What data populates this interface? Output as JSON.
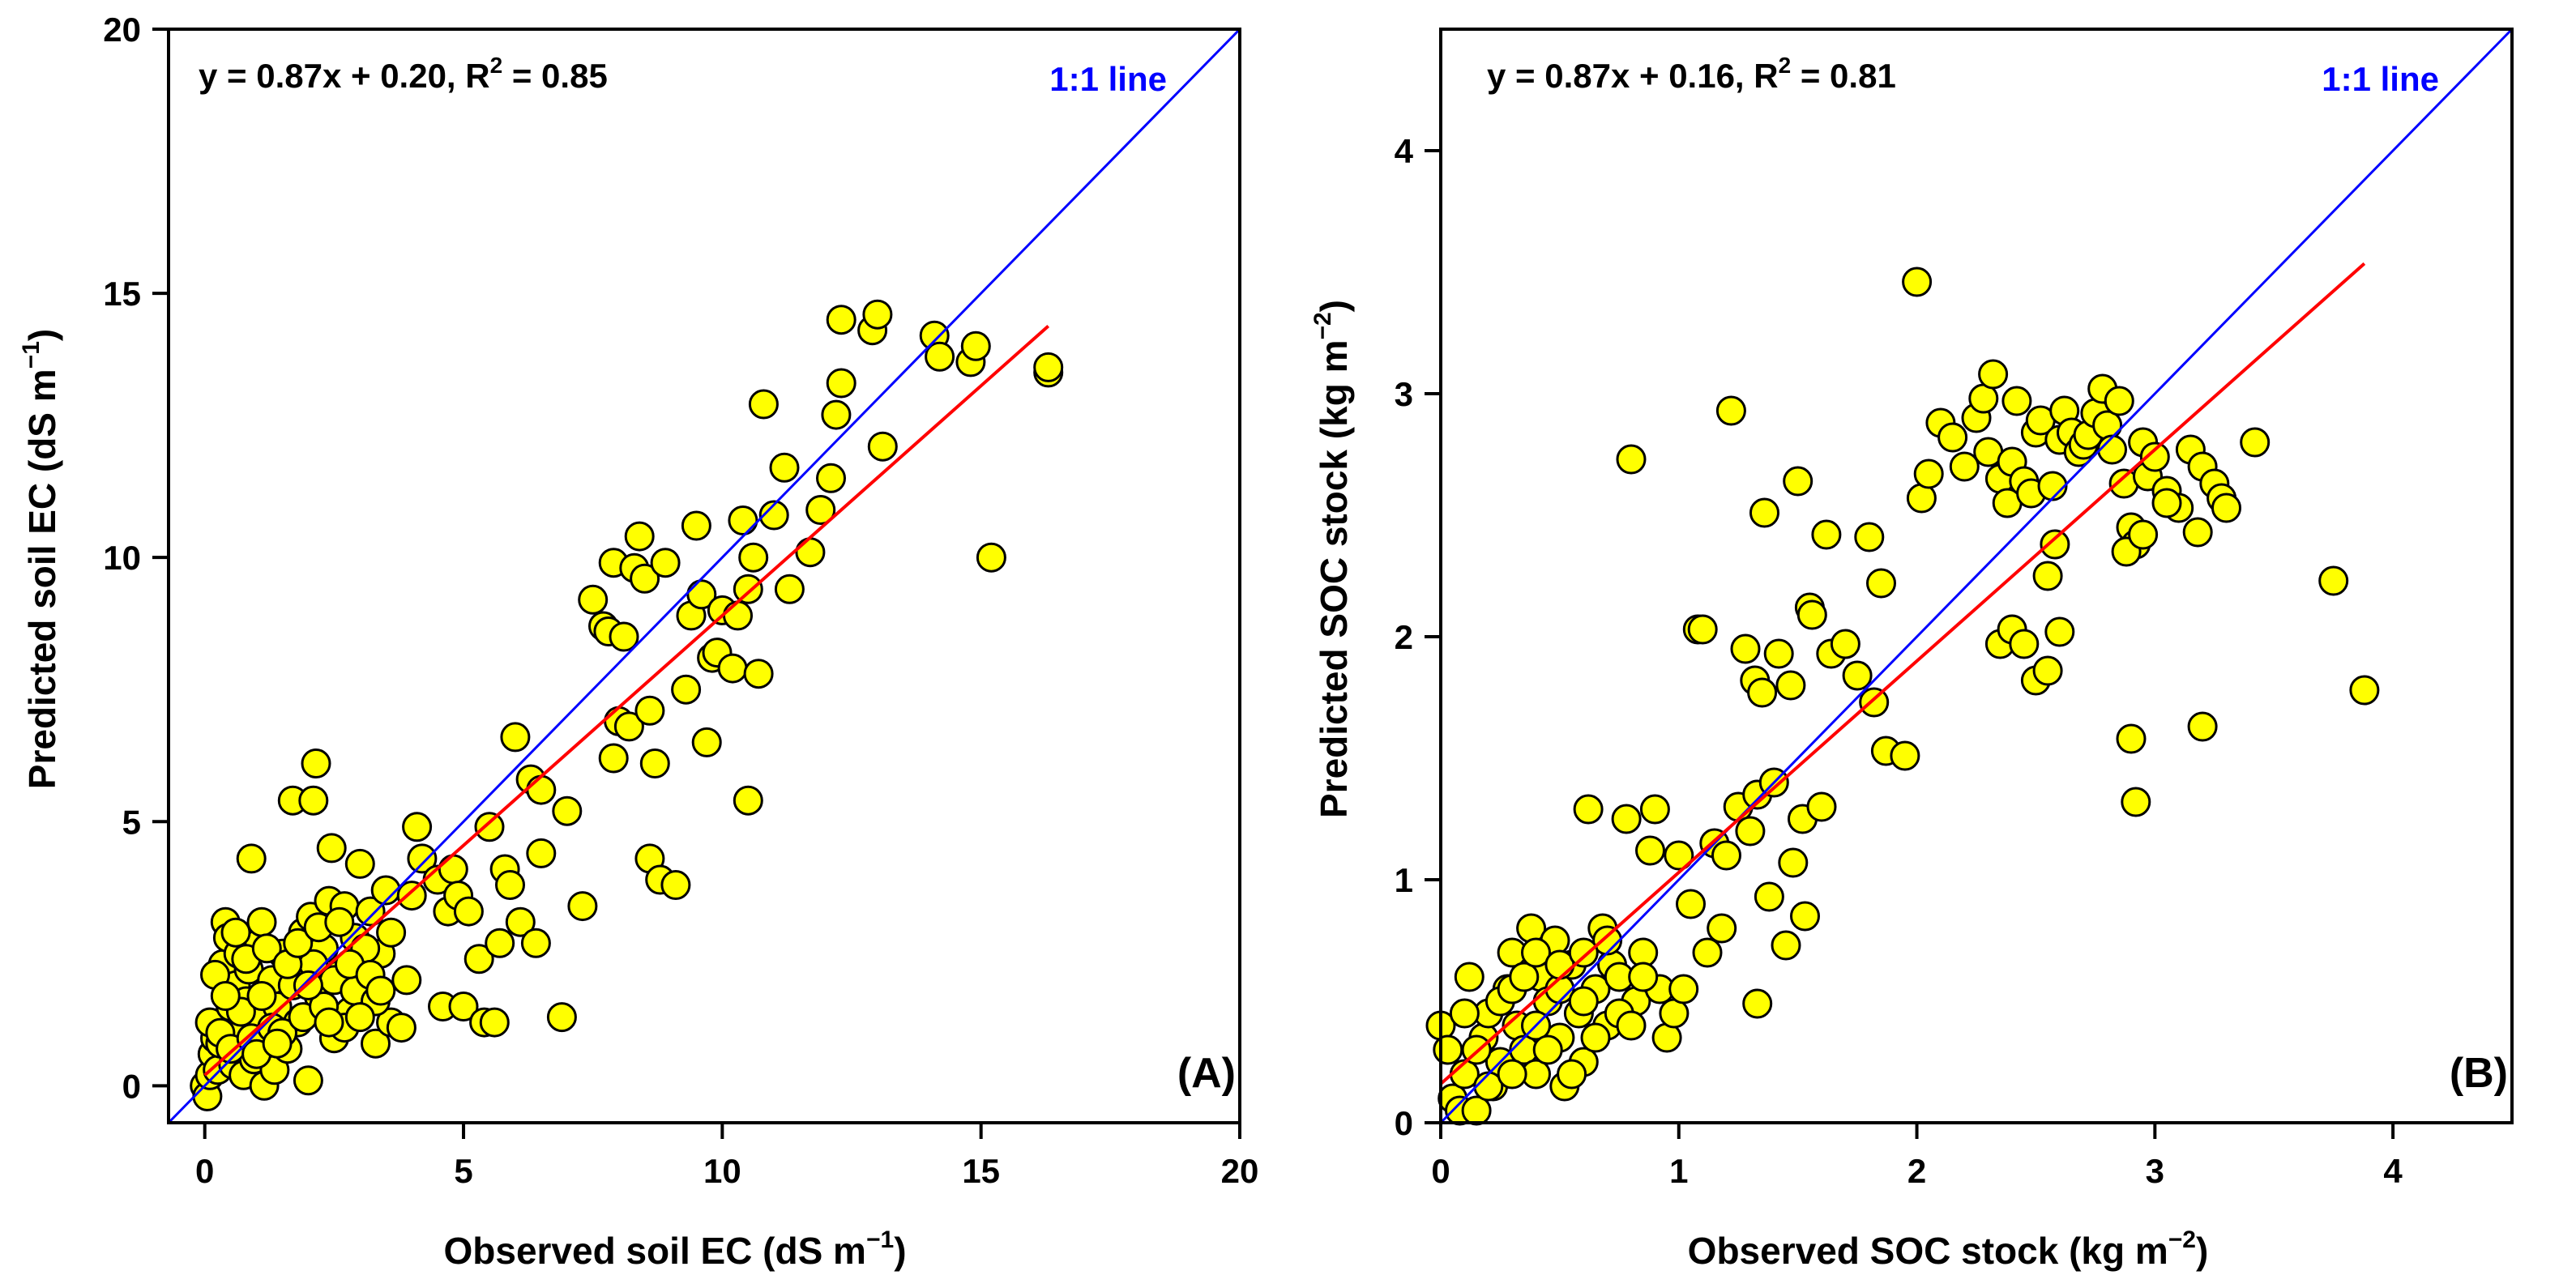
{
  "colors": {
    "points_fill": "#ffff00",
    "points_stroke": "#000000",
    "one_to_one": "#0000ff",
    "regression": "#ff0000",
    "one_to_one_label": "#0000ff"
  },
  "chart_data": [
    {
      "type": "scatter",
      "panel_label": "(A)",
      "title": "",
      "xlabel": "Observed soil EC (dS m",
      "xlabel_sup": "−1",
      "xlabel_end": ")",
      "ylabel": "Predicted soil EC (dS m",
      "ylabel_sup": "−1",
      "ylabel_end": ")",
      "xlim": [
        -0.7,
        20
      ],
      "ylim": [
        -0.7,
        20
      ],
      "xticks": [
        0,
        5,
        10,
        15,
        20
      ],
      "yticks": [
        0,
        5,
        10,
        15,
        20
      ],
      "xtick_labels": [
        "0",
        "5",
        "10",
        "15",
        "20"
      ],
      "ytick_labels": [
        "0",
        "5",
        "10",
        "15",
        "20"
      ],
      "equation": "y = 0.87x + 0.20, R",
      "equation_sup": "2",
      "equation_end": " = 0.85",
      "one_to_one_label": "1:1 line",
      "fit": {
        "slope": 0.87,
        "intercept": 0.2,
        "x_range": [
          0,
          16.3
        ]
      },
      "one_to_one_range": [
        -0.7,
        20
      ],
      "points": [
        [
          0.0,
          0.0
        ],
        [
          0.05,
          -0.2
        ],
        [
          0.1,
          0.2
        ],
        [
          0.15,
          0.6
        ],
        [
          0.2,
          0.9
        ],
        [
          0.1,
          1.2
        ],
        [
          0.25,
          0.3
        ],
        [
          0.3,
          0.8
        ],
        [
          0.35,
          2.3
        ],
        [
          0.4,
          3.1
        ],
        [
          0.45,
          2.8
        ],
        [
          0.5,
          1.5
        ],
        [
          0.55,
          0.4
        ],
        [
          0.6,
          1.9
        ],
        [
          0.65,
          2.5
        ],
        [
          0.7,
          1.0
        ],
        [
          0.75,
          0.2
        ],
        [
          0.8,
          1.6
        ],
        [
          0.85,
          2.2
        ],
        [
          0.9,
          4.3
        ],
        [
          0.95,
          0.5
        ],
        [
          1.0,
          1.3
        ],
        [
          1.05,
          2.7
        ],
        [
          1.1,
          3.1
        ],
        [
          1.15,
          0.0
        ],
        [
          1.2,
          1.8
        ],
        [
          1.25,
          0.9
        ],
        [
          1.3,
          2.0
        ],
        [
          1.35,
          0.3
        ],
        [
          1.4,
          1.5
        ],
        [
          1.5,
          2.5
        ],
        [
          1.6,
          0.7
        ],
        [
          1.7,
          5.4
        ],
        [
          1.75,
          2.2
        ],
        [
          1.8,
          1.2
        ],
        [
          1.9,
          2.9
        ],
        [
          2.0,
          0.1
        ],
        [
          2.05,
          3.2
        ],
        [
          2.1,
          5.4
        ],
        [
          2.15,
          6.1
        ],
        [
          2.2,
          1.7
        ],
        [
          2.3,
          2.6
        ],
        [
          2.4,
          3.5
        ],
        [
          2.45,
          4.5
        ],
        [
          2.5,
          0.9
        ],
        [
          2.6,
          2.1
        ],
        [
          2.7,
          3.4
        ],
        [
          2.8,
          1.4
        ],
        [
          2.9,
          2.8
        ],
        [
          3.0,
          4.2
        ],
        [
          3.1,
          1.9
        ],
        [
          3.2,
          3.3
        ],
        [
          3.3,
          0.8
        ],
        [
          3.4,
          2.5
        ],
        [
          3.5,
          3.7
        ],
        [
          3.6,
          1.2
        ],
        [
          0.3,
          1.0
        ],
        [
          0.5,
          0.7
        ],
        [
          0.7,
          1.4
        ],
        [
          0.9,
          0.9
        ],
        [
          1.1,
          1.7
        ],
        [
          1.3,
          1.1
        ],
        [
          1.5,
          1.0
        ],
        [
          1.7,
          1.9
        ],
        [
          1.9,
          1.3
        ],
        [
          2.1,
          2.3
        ],
        [
          2.3,
          1.5
        ],
        [
          2.5,
          2.0
        ],
        [
          2.7,
          1.1
        ],
        [
          2.9,
          1.8
        ],
        [
          3.1,
          2.6
        ],
        [
          3.3,
          1.6
        ],
        [
          0.2,
          2.1
        ],
        [
          0.4,
          1.7
        ],
        [
          0.6,
          2.9
        ],
        [
          0.8,
          2.4
        ],
        [
          1.0,
          0.6
        ],
        [
          1.2,
          2.6
        ],
        [
          1.4,
          0.8
        ],
        [
          1.6,
          2.3
        ],
        [
          1.8,
          2.7
        ],
        [
          2.0,
          1.9
        ],
        [
          2.2,
          3.0
        ],
        [
          2.4,
          1.2
        ],
        [
          2.6,
          3.1
        ],
        [
          2.8,
          2.3
        ],
        [
          3.0,
          1.3
        ],
        [
          3.2,
          2.1
        ],
        [
          3.4,
          1.8
        ],
        [
          3.6,
          2.9
        ],
        [
          3.8,
          1.1
        ],
        [
          3.9,
          2.0
        ],
        [
          4.0,
          3.6
        ],
        [
          4.1,
          4.9
        ],
        [
          4.2,
          4.3
        ],
        [
          4.5,
          3.9
        ],
        [
          4.6,
          1.5
        ],
        [
          4.7,
          3.3
        ],
        [
          4.8,
          4.1
        ],
        [
          4.9,
          3.6
        ],
        [
          5.0,
          1.5
        ],
        [
          5.1,
          3.3
        ],
        [
          5.3,
          2.4
        ],
        [
          5.4,
          1.2
        ],
        [
          5.5,
          4.9
        ],
        [
          5.6,
          1.2
        ],
        [
          5.7,
          2.7
        ],
        [
          5.8,
          4.1
        ],
        [
          5.9,
          3.8
        ],
        [
          6.0,
          6.6
        ],
        [
          6.1,
          3.1
        ],
        [
          6.3,
          5.8
        ],
        [
          6.4,
          2.7
        ],
        [
          6.5,
          4.4
        ],
        [
          6.5,
          5.6
        ],
        [
          6.9,
          1.3
        ],
        [
          7.0,
          5.2
        ],
        [
          7.3,
          3.4
        ],
        [
          7.5,
          9.2
        ],
        [
          7.7,
          8.7
        ],
        [
          7.8,
          8.6
        ],
        [
          7.9,
          9.9
        ],
        [
          7.9,
          6.2
        ],
        [
          8.0,
          6.9
        ],
        [
          8.1,
          8.5
        ],
        [
          8.2,
          6.8
        ],
        [
          8.3,
          9.8
        ],
        [
          8.4,
          10.4
        ],
        [
          8.5,
          9.6
        ],
        [
          8.6,
          4.3
        ],
        [
          8.6,
          7.1
        ],
        [
          8.7,
          6.1
        ],
        [
          8.8,
          3.9
        ],
        [
          8.9,
          9.9
        ],
        [
          9.1,
          3.8
        ],
        [
          9.3,
          7.5
        ],
        [
          9.4,
          8.9
        ],
        [
          9.5,
          10.6
        ],
        [
          9.6,
          9.3
        ],
        [
          9.7,
          6.5
        ],
        [
          9.8,
          8.1
        ],
        [
          9.9,
          8.2
        ],
        [
          10.0,
          9.0
        ],
        [
          10.2,
          7.9
        ],
        [
          10.3,
          8.9
        ],
        [
          10.4,
          10.7
        ],
        [
          10.5,
          9.4
        ],
        [
          10.5,
          5.4
        ],
        [
          10.6,
          10.0
        ],
        [
          10.7,
          7.8
        ],
        [
          10.8,
          12.9
        ],
        [
          11.0,
          10.8
        ],
        [
          11.2,
          11.7
        ],
        [
          11.3,
          9.4
        ],
        [
          11.7,
          10.1
        ],
        [
          11.9,
          10.9
        ],
        [
          12.1,
          11.5
        ],
        [
          12.2,
          12.7
        ],
        [
          12.3,
          13.3
        ],
        [
          12.3,
          14.5
        ],
        [
          12.9,
          14.3
        ],
        [
          13.0,
          14.6
        ],
        [
          13.1,
          12.1
        ],
        [
          14.1,
          14.2
        ],
        [
          14.2,
          13.8
        ],
        [
          14.8,
          13.7
        ],
        [
          14.9,
          14.0
        ],
        [
          15.2,
          10.0
        ],
        [
          16.3,
          13.5
        ],
        [
          16.3,
          13.6
        ]
      ]
    },
    {
      "type": "scatter",
      "panel_label": "(B)",
      "title": "",
      "xlabel": "Observed SOC stock (kg m",
      "xlabel_sup": "−2",
      "xlabel_end": ")",
      "ylabel": "Predicted SOC stock (kg m",
      "ylabel_sup": "−2",
      "ylabel_end": ")",
      "xlim": [
        0,
        4.5
      ],
      "ylim": [
        0,
        4.5
      ],
      "xticks": [
        0,
        1,
        2,
        3,
        4
      ],
      "yticks": [
        0,
        1,
        2,
        3,
        4
      ],
      "xtick_labels": [
        "0",
        "1",
        "2",
        "3",
        "4"
      ],
      "ytick_labels": [
        "0",
        "1",
        "2",
        "3",
        "4"
      ],
      "equation": "y = 0.87x + 0.16, R",
      "equation_sup": "2",
      "equation_end": " = 0.81",
      "one_to_one_label": "1:1 line",
      "fit": {
        "slope": 0.87,
        "intercept": 0.16,
        "x_range": [
          0,
          3.88
        ]
      },
      "one_to_one_range": [
        0,
        4.5
      ],
      "points": [
        [
          0.0,
          0.4
        ],
        [
          0.03,
          0.3
        ],
        [
          0.05,
          0.1
        ],
        [
          0.08,
          0.05
        ],
        [
          0.1,
          0.2
        ],
        [
          0.12,
          0.6
        ],
        [
          0.15,
          0.05
        ],
        [
          0.18,
          0.35
        ],
        [
          0.2,
          0.45
        ],
        [
          0.22,
          0.15
        ],
        [
          0.25,
          0.25
        ],
        [
          0.28,
          0.55
        ],
        [
          0.3,
          0.7
        ],
        [
          0.32,
          0.4
        ],
        [
          0.35,
          0.3
        ],
        [
          0.38,
          0.8
        ],
        [
          0.4,
          0.2
        ],
        [
          0.42,
          0.6
        ],
        [
          0.45,
          0.5
        ],
        [
          0.48,
          0.75
        ],
        [
          0.5,
          0.35
        ],
        [
          0.52,
          0.15
        ],
        [
          0.55,
          0.65
        ],
        [
          0.58,
          0.45
        ],
        [
          0.6,
          0.25
        ],
        [
          0.62,
          1.29
        ],
        [
          0.65,
          0.55
        ],
        [
          0.68,
          0.8
        ],
        [
          0.7,
          0.4
        ],
        [
          0.72,
          0.65
        ],
        [
          0.75,
          0.6
        ],
        [
          0.78,
          1.25
        ],
        [
          0.8,
          2.73
        ],
        [
          0.82,
          0.5
        ],
        [
          0.85,
          0.7
        ],
        [
          0.88,
          1.12
        ],
        [
          0.9,
          1.29
        ],
        [
          0.92,
          0.55
        ],
        [
          0.95,
          0.35
        ],
        [
          0.98,
          0.45
        ],
        [
          0.1,
          0.45
        ],
        [
          0.15,
          0.3
        ],
        [
          0.2,
          0.15
        ],
        [
          0.25,
          0.5
        ],
        [
          0.3,
          0.55
        ],
        [
          0.35,
          0.6
        ],
        [
          0.4,
          0.4
        ],
        [
          0.45,
          0.3
        ],
        [
          0.5,
          0.55
        ],
        [
          0.55,
          0.2
        ],
        [
          0.6,
          0.5
        ],
        [
          0.65,
          0.35
        ],
        [
          0.7,
          0.75
        ],
        [
          0.75,
          0.45
        ],
        [
          0.8,
          0.4
        ],
        [
          0.85,
          0.6
        ],
        [
          0.3,
          0.2
        ],
        [
          0.4,
          0.7
        ],
        [
          0.5,
          0.65
        ],
        [
          0.6,
          0.7
        ],
        [
          1.0,
          1.1
        ],
        [
          1.02,
          0.55
        ],
        [
          1.05,
          0.9
        ],
        [
          1.08,
          2.03
        ],
        [
          1.1,
          2.03
        ],
        [
          1.12,
          0.7
        ],
        [
          1.15,
          1.15
        ],
        [
          1.18,
          0.8
        ],
        [
          1.2,
          1.1
        ],
        [
          1.22,
          2.93
        ],
        [
          1.25,
          1.3
        ],
        [
          1.28,
          1.95
        ],
        [
          1.3,
          1.2
        ],
        [
          1.32,
          1.82
        ],
        [
          1.33,
          1.35
        ],
        [
          1.35,
          1.77
        ],
        [
          1.36,
          2.51
        ],
        [
          1.38,
          0.93
        ],
        [
          1.4,
          1.4
        ],
        [
          1.42,
          1.93
        ],
        [
          1.45,
          0.73
        ],
        [
          1.47,
          1.8
        ],
        [
          1.48,
          1.07
        ],
        [
          1.5,
          2.64
        ],
        [
          1.52,
          1.25
        ],
        [
          1.53,
          0.85
        ],
        [
          1.55,
          2.12
        ],
        [
          1.56,
          2.09
        ],
        [
          1.33,
          0.49
        ],
        [
          1.6,
          1.3
        ],
        [
          1.62,
          2.42
        ],
        [
          1.64,
          1.93
        ],
        [
          1.7,
          1.97
        ],
        [
          1.75,
          1.84
        ],
        [
          1.8,
          2.41
        ],
        [
          1.82,
          1.73
        ],
        [
          1.85,
          2.22
        ],
        [
          1.87,
          1.53
        ],
        [
          1.95,
          1.51
        ],
        [
          2.0,
          3.46
        ],
        [
          2.02,
          2.57
        ],
        [
          2.05,
          2.67
        ],
        [
          2.1,
          2.88
        ],
        [
          2.15,
          2.82
        ],
        [
          2.2,
          2.7
        ],
        [
          2.25,
          2.9
        ],
        [
          2.28,
          2.98
        ],
        [
          2.3,
          2.76
        ],
        [
          2.32,
          3.08
        ],
        [
          2.35,
          2.65
        ],
        [
          2.38,
          2.55
        ],
        [
          2.4,
          2.72
        ],
        [
          2.42,
          2.97
        ],
        [
          2.45,
          2.64
        ],
        [
          2.48,
          2.59
        ],
        [
          2.5,
          2.84
        ],
        [
          2.52,
          2.89
        ],
        [
          2.55,
          2.25
        ],
        [
          2.57,
          2.62
        ],
        [
          2.6,
          2.81
        ],
        [
          2.62,
          2.93
        ],
        [
          2.65,
          2.84
        ],
        [
          2.68,
          2.76
        ],
        [
          2.7,
          2.79
        ],
        [
          2.72,
          2.83
        ],
        [
          2.75,
          2.92
        ],
        [
          2.78,
          3.02
        ],
        [
          2.8,
          2.87
        ],
        [
          2.82,
          2.77
        ],
        [
          2.85,
          2.97
        ],
        [
          2.87,
          2.63
        ],
        [
          2.9,
          2.45
        ],
        [
          2.92,
          2.38
        ],
        [
          2.95,
          2.8
        ],
        [
          2.97,
          2.66
        ],
        [
          3.0,
          2.74
        ],
        [
          3.05,
          2.6
        ],
        [
          3.1,
          2.53
        ],
        [
          3.15,
          2.77
        ],
        [
          3.2,
          2.7
        ],
        [
          3.25,
          2.63
        ],
        [
          3.28,
          2.57
        ],
        [
          3.3,
          2.53
        ],
        [
          3.42,
          2.8
        ],
        [
          2.35,
          1.97
        ],
        [
          2.4,
          2.03
        ],
        [
          2.45,
          1.97
        ],
        [
          2.5,
          1.82
        ],
        [
          2.55,
          1.86
        ],
        [
          2.58,
          2.38
        ],
        [
          2.6,
          2.02
        ],
        [
          2.88,
          2.35
        ],
        [
          2.9,
          1.58
        ],
        [
          2.92,
          1.32
        ],
        [
          3.2,
          1.63
        ],
        [
          3.75,
          2.23
        ],
        [
          3.88,
          1.78
        ],
        [
          2.95,
          2.42
        ],
        [
          3.05,
          2.55
        ],
        [
          3.18,
          2.43
        ]
      ]
    }
  ]
}
